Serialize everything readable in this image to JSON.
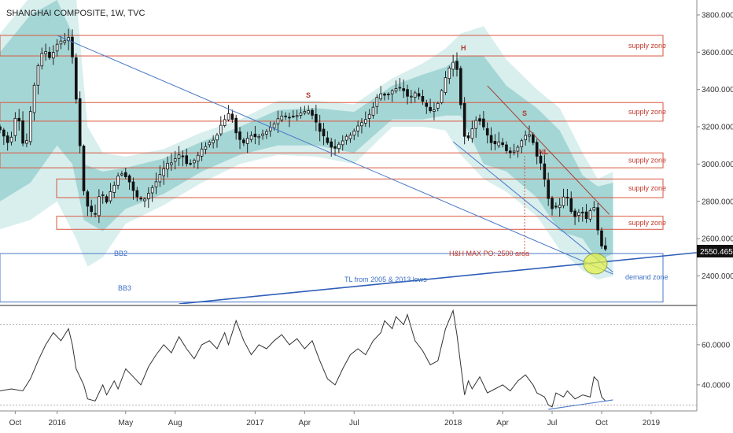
{
  "chart_data": {
    "type": "candlestick",
    "title": "SHANGHAI COMPOSITE, 1W, TVC",
    "price_axis": {
      "range": [
        2250,
        3880
      ],
      "ticks": [
        2400,
        2600,
        2800,
        3000,
        3200,
        3400,
        3600,
        3800
      ],
      "tick_labels": [
        "2400.000",
        "2600.000",
        "2800.000",
        "3000.000",
        "3200.000",
        "3400.000",
        "3600.000",
        "3800.000"
      ],
      "last_price": "2550.465"
    },
    "rsi_axis": {
      "range": [
        27,
        78
      ],
      "ticks": [
        40,
        60
      ],
      "tick_labels": [
        "40.0000",
        "60.0000"
      ],
      "levels": [
        30,
        70
      ]
    },
    "x_axis": {
      "labels": [
        {
          "t": "Oct",
          "week": 1
        },
        {
          "t": "2016",
          "week": 12
        },
        {
          "t": "May",
          "week": 30
        },
        {
          "t": "Aug",
          "week": 43
        },
        {
          "t": "2017",
          "week": 64
        },
        {
          "t": "Apr",
          "week": 77
        },
        {
          "t": "Jul",
          "week": 90
        },
        {
          "t": "2018",
          "week": 116
        },
        {
          "t": "Apr",
          "week": 129
        },
        {
          "t": "Jul",
          "week": 142
        },
        {
          "t": "Oct",
          "week": 155
        },
        {
          "t": "2019",
          "week": 168
        }
      ],
      "range": [
        -3,
        180
      ]
    },
    "anchors": [
      [
        -3,
        3200
      ],
      [
        0,
        3100
      ],
      [
        2,
        3300
      ],
      [
        4,
        3050
      ],
      [
        7,
        3500
      ],
      [
        9,
        3620
      ],
      [
        11,
        3560
      ],
      [
        12,
        3640
      ],
      [
        14,
        3660
      ],
      [
        16,
        3680
      ],
      [
        17,
        3460
      ],
      [
        18,
        3250
      ],
      [
        19,
        2950
      ],
      [
        20,
        2750
      ],
      [
        21,
        2800
      ],
      [
        22,
        2680
      ],
      [
        24,
        2880
      ],
      [
        25,
        2780
      ],
      [
        27,
        2870
      ],
      [
        29,
        2960
      ],
      [
        31,
        2930
      ],
      [
        33,
        2830
      ],
      [
        35,
        2800
      ],
      [
        37,
        2860
      ],
      [
        39,
        2920
      ],
      [
        41,
        2990
      ],
      [
        43,
        3020
      ],
      [
        45,
        3060
      ],
      [
        47,
        2990
      ],
      [
        49,
        3030
      ],
      [
        51,
        3090
      ],
      [
        54,
        3140
      ],
      [
        56,
        3230
      ],
      [
        58,
        3280
      ],
      [
        60,
        3130
      ],
      [
        62,
        3110
      ],
      [
        63,
        3160
      ],
      [
        65,
        3140
      ],
      [
        68,
        3180
      ],
      [
        70,
        3230
      ],
      [
        72,
        3260
      ],
      [
        74,
        3250
      ],
      [
        76,
        3270
      ],
      [
        79,
        3290
      ],
      [
        81,
        3200
      ],
      [
        83,
        3130
      ],
      [
        85,
        3080
      ],
      [
        87,
        3120
      ],
      [
        89,
        3150
      ],
      [
        91,
        3190
      ],
      [
        93,
        3230
      ],
      [
        95,
        3280
      ],
      [
        97,
        3380
      ],
      [
        99,
        3370
      ],
      [
        101,
        3400
      ],
      [
        103,
        3410
      ],
      [
        105,
        3350
      ],
      [
        107,
        3390
      ],
      [
        109,
        3310
      ],
      [
        111,
        3280
      ],
      [
        113,
        3350
      ],
      [
        115,
        3500
      ],
      [
        117,
        3560
      ],
      [
        118,
        3460
      ],
      [
        119,
        3190
      ],
      [
        120,
        3100
      ],
      [
        121,
        3170
      ],
      [
        123,
        3260
      ],
      [
        125,
        3170
      ],
      [
        127,
        3100
      ],
      [
        129,
        3120
      ],
      [
        131,
        3060
      ],
      [
        133,
        3080
      ],
      [
        135,
        3140
      ],
      [
        137,
        3170
      ],
      [
        138,
        3060
      ],
      [
        140,
        2980
      ],
      [
        141,
        2850
      ],
      [
        142,
        2770
      ],
      [
        144,
        2760
      ],
      [
        146,
        2850
      ],
      [
        148,
        2710
      ],
      [
        150,
        2760
      ],
      [
        152,
        2690
      ],
      [
        153,
        2820
      ],
      [
        154,
        2720
      ],
      [
        155,
        2560
      ],
      [
        156,
        2550
      ]
    ],
    "bollinger_inner": [
      [
        -3,
        3600,
        2800
      ],
      [
        5,
        3800,
        2900
      ],
      [
        12,
        3880,
        3100
      ],
      [
        16,
        3700,
        3000
      ],
      [
        19,
        3000,
        2700
      ],
      [
        24,
        2960,
        2640
      ],
      [
        30,
        2980,
        2760
      ],
      [
        40,
        3030,
        2840
      ],
      [
        50,
        3120,
        2960
      ],
      [
        60,
        3200,
        3050
      ],
      [
        70,
        3290,
        3100
      ],
      [
        80,
        3300,
        3100
      ],
      [
        90,
        3280,
        3060
      ],
      [
        100,
        3420,
        3240
      ],
      [
        108,
        3480,
        3240
      ],
      [
        114,
        3520,
        3260
      ],
      [
        118,
        3580,
        3260
      ],
      [
        124,
        3580,
        3000
      ],
      [
        130,
        3420,
        2960
      ],
      [
        138,
        3300,
        2820
      ],
      [
        144,
        3180,
        2640
      ],
      [
        150,
        2940,
        2600
      ],
      [
        154,
        2880,
        2480
      ],
      [
        158,
        2900,
        2520
      ]
    ],
    "bollinger_outer": [
      [
        -3,
        3700,
        2650
      ],
      [
        5,
        3900,
        2700
      ],
      [
        12,
        3950,
        2800
      ],
      [
        17,
        3900,
        2600
      ],
      [
        20,
        3200,
        2450
      ],
      [
        24,
        3060,
        2500
      ],
      [
        30,
        3040,
        2680
      ],
      [
        40,
        3080,
        2780
      ],
      [
        50,
        3170,
        2900
      ],
      [
        60,
        3240,
        3000
      ],
      [
        70,
        3340,
        3050
      ],
      [
        80,
        3340,
        3040
      ],
      [
        90,
        3320,
        3000
      ],
      [
        100,
        3460,
        3200
      ],
      [
        108,
        3540,
        3200
      ],
      [
        114,
        3620,
        3180
      ],
      [
        118,
        3700,
        3050
      ],
      [
        124,
        3740,
        2920
      ],
      [
        130,
        3560,
        2850
      ],
      [
        138,
        3400,
        2720
      ],
      [
        144,
        3300,
        2540
      ],
      [
        150,
        3060,
        2430
      ],
      [
        154,
        2920,
        2380
      ],
      [
        158,
        2960,
        2400
      ]
    ],
    "supply_zones": [
      [
        3580,
        3690
      ],
      [
        3230,
        3330
      ],
      [
        2980,
        3060
      ],
      [
        2820,
        2920
      ],
      [
        2650,
        2720
      ]
    ],
    "demand_zone": [
      2260,
      2520
    ],
    "rsi": [
      [
        -3,
        37
      ],
      [
        0,
        38
      ],
      [
        3,
        37
      ],
      [
        5,
        43
      ],
      [
        7,
        52
      ],
      [
        9,
        60
      ],
      [
        11,
        66
      ],
      [
        13,
        62
      ],
      [
        15,
        68
      ],
      [
        16,
        60
      ],
      [
        17,
        48
      ],
      [
        19,
        40
      ],
      [
        20,
        33
      ],
      [
        22,
        32
      ],
      [
        24,
        40
      ],
      [
        25,
        35
      ],
      [
        27,
        42
      ],
      [
        28,
        38
      ],
      [
        30,
        48
      ],
      [
        32,
        44
      ],
      [
        34,
        40
      ],
      [
        36,
        49
      ],
      [
        38,
        55
      ],
      [
        40,
        60
      ],
      [
        42,
        56
      ],
      [
        44,
        64
      ],
      [
        46,
        58
      ],
      [
        48,
        53
      ],
      [
        50,
        60
      ],
      [
        52,
        62
      ],
      [
        54,
        58
      ],
      [
        56,
        66
      ],
      [
        57,
        60
      ],
      [
        59,
        72
      ],
      [
        61,
        62
      ],
      [
        63,
        55
      ],
      [
        65,
        60
      ],
      [
        67,
        58
      ],
      [
        69,
        62
      ],
      [
        71,
        65
      ],
      [
        73,
        60
      ],
      [
        75,
        63
      ],
      [
        77,
        58
      ],
      [
        79,
        62
      ],
      [
        81,
        52
      ],
      [
        83,
        43
      ],
      [
        85,
        40
      ],
      [
        87,
        48
      ],
      [
        89,
        55
      ],
      [
        91,
        58
      ],
      [
        93,
        55
      ],
      [
        95,
        62
      ],
      [
        97,
        66
      ],
      [
        98,
        72
      ],
      [
        100,
        68
      ],
      [
        101,
        74
      ],
      [
        103,
        70
      ],
      [
        104,
        75
      ],
      [
        106,
        62
      ],
      [
        108,
        57
      ],
      [
        110,
        50
      ],
      [
        112,
        52
      ],
      [
        114,
        68
      ],
      [
        116,
        77
      ],
      [
        117,
        65
      ],
      [
        118,
        50
      ],
      [
        119,
        35
      ],
      [
        120,
        42
      ],
      [
        121,
        38
      ],
      [
        123,
        44
      ],
      [
        125,
        36
      ],
      [
        127,
        38
      ],
      [
        129,
        40
      ],
      [
        131,
        37
      ],
      [
        133,
        42
      ],
      [
        135,
        45
      ],
      [
        137,
        40
      ],
      [
        138,
        36
      ],
      [
        140,
        34
      ],
      [
        141,
        30
      ],
      [
        142,
        29
      ],
      [
        143,
        36
      ],
      [
        145,
        34
      ],
      [
        146,
        37
      ],
      [
        148,
        33
      ],
      [
        150,
        35
      ],
      [
        152,
        34
      ],
      [
        153,
        44
      ],
      [
        154,
        42
      ],
      [
        155,
        34
      ],
      [
        156,
        32
      ]
    ],
    "lines": [
      {
        "name": "tl-major",
        "x1": 12,
        "y1": 3690,
        "x2": 158,
        "y2": 2410,
        "color": "#4a78c8"
      },
      {
        "name": "tl-lower-channel",
        "x1": 116,
        "y1": 3120,
        "x2": 158,
        "y2": 2420,
        "color": "#4a78c8"
      },
      {
        "name": "tl-2005-2013",
        "x1": 44,
        "y1": 2250,
        "x2": 180,
        "y2": 2525,
        "color": "#2f5fb8",
        "width": 1.6
      },
      {
        "name": "neckline-down",
        "x1": 125,
        "y1": 3420,
        "x2": 157,
        "y2": 2730,
        "color": "#a04038"
      }
    ],
    "annotations": {
      "supply_zone": "supply zone",
      "demand_zone": "demand zone",
      "tl": "TL from 2005 & 2013 lows",
      "hs_target": "H&H MAX PO: 2500 area",
      "bb2": "BB2",
      "bb3": "BB3",
      "h": "H",
      "s": "S",
      "nl": "NL"
    },
    "colors": {
      "bb_outer": "#d4edec",
      "bb_inner": "#9ed3d2",
      "zone_stroke": "#d9573f",
      "demand_stroke": "#4a78c8",
      "candle": "#111111",
      "rsi": "#333333"
    }
  }
}
